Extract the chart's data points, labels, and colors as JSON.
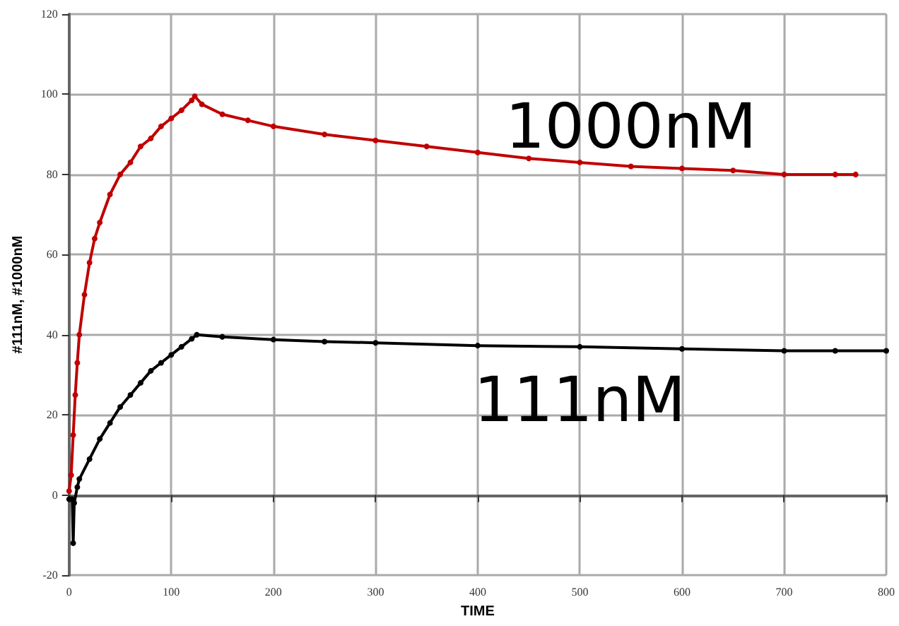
{
  "chart_data": {
    "type": "line",
    "xlabel": "TIME",
    "ylabel": "#111nM, #1000nM",
    "xlim": [
      0,
      800
    ],
    "xticks": [
      0,
      100,
      200,
      300,
      400,
      500,
      600,
      700,
      800
    ],
    "ylim": [
      -20,
      120
    ],
    "yticks": [
      -20,
      0,
      20,
      40,
      60,
      80,
      100,
      120
    ],
    "grid": true,
    "marker": "circle",
    "line_style": "solid",
    "series": [
      {
        "name": "1000nM",
        "color": "#c00000",
        "x": [
          0,
          2,
          4,
          6,
          8,
          10,
          15,
          20,
          25,
          30,
          40,
          50,
          60,
          70,
          80,
          90,
          100,
          110,
          120,
          123,
          130,
          150,
          175,
          200,
          250,
          300,
          350,
          400,
          450,
          500,
          550,
          600,
          650,
          700,
          750,
          770
        ],
        "values": [
          1,
          5,
          15,
          25,
          33,
          40,
          50,
          58,
          64,
          68,
          75,
          80,
          83,
          87,
          89,
          92,
          94,
          96,
          98.5,
          99.5,
          97.5,
          95,
          93.5,
          92,
          90,
          88.5,
          87,
          85.5,
          84,
          83,
          82,
          81.5,
          81,
          80,
          80,
          80
        ]
      },
      {
        "name": "111nM",
        "color": "#000000",
        "x": [
          0,
          3,
          4,
          5,
          8,
          10,
          20,
          30,
          40,
          50,
          60,
          70,
          80,
          90,
          100,
          110,
          120,
          125,
          150,
          200,
          250,
          300,
          400,
          500,
          600,
          700,
          750,
          800
        ],
        "values": [
          -1,
          -1,
          -12,
          -2,
          2,
          4,
          9,
          14,
          18,
          22,
          25,
          28,
          31,
          33,
          35,
          37,
          39,
          40,
          39.5,
          38.8,
          38.3,
          38,
          37.3,
          37,
          36.5,
          36,
          36,
          36
        ]
      }
    ]
  }
}
